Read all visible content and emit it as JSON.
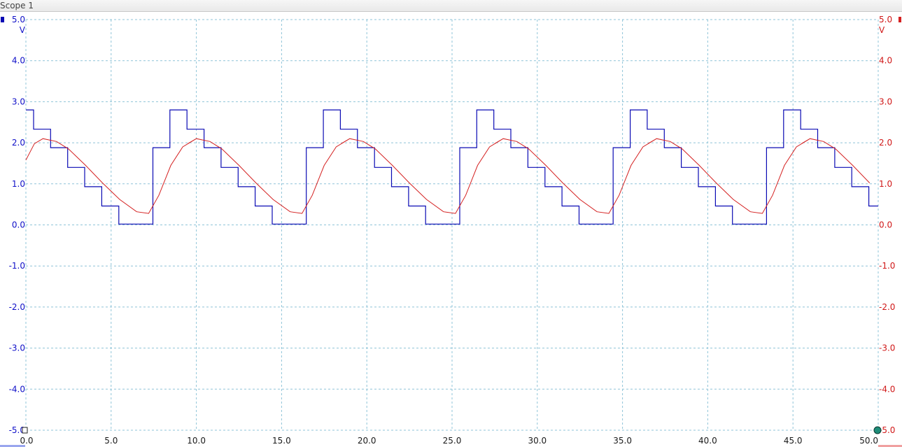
{
  "window": {
    "title": "Scope 1"
  },
  "colors": {
    "ch1": "#0a0ab4",
    "ch2": "#d42020",
    "grid": "#8fc4d8",
    "marker": "#1e8c78"
  },
  "chart_data": {
    "type": "line",
    "x": {
      "min": 0.0,
      "max": 50.0,
      "ticks": [
        "0.0",
        "5.0",
        "10.0",
        "15.0",
        "20.0",
        "25.0",
        "30.0",
        "35.0",
        "40.0",
        "45.0",
        "50.0"
      ]
    },
    "y_left": {
      "unit": "V",
      "min": -5.0,
      "max": 5.0,
      "ticks": [
        "5.0",
        "4.0",
        "3.0",
        "2.0",
        "1.0",
        "0.0",
        "-1.0",
        "-2.0",
        "-3.0",
        "-4.0",
        "-5.0"
      ]
    },
    "y_right": {
      "unit": "V",
      "min": -5.0,
      "max": 5.0,
      "ticks": [
        "5.0",
        "4.0",
        "3.0",
        "2.0",
        "1.0",
        "0.0",
        "-1.0",
        "-2.0",
        "-3.0",
        "-4.0",
        "-5.0"
      ]
    },
    "grid": true,
    "series": [
      {
        "channel": "left",
        "color": "#0a0ab4",
        "period": 9.0,
        "steps": [
          {
            "start": 0.0,
            "value": 2.8
          },
          {
            "start": 0.45,
            "value": 2.33
          },
          {
            "start": 1.45,
            "value": 1.88
          },
          {
            "start": 2.45,
            "value": 1.4
          },
          {
            "start": 3.45,
            "value": 0.93
          },
          {
            "start": 4.45,
            "value": 0.46
          },
          {
            "start": 5.45,
            "value": 0.02
          },
          {
            "start": 7.45,
            "value": 1.88
          },
          {
            "start": 8.45,
            "value": 2.8
          }
        ],
        "end_x": 50.0
      },
      {
        "channel": "right",
        "color": "#d42020",
        "period": 9.0,
        "points": [
          [
            0.0,
            1.58
          ],
          [
            0.5,
            1.98
          ],
          [
            1.0,
            2.1
          ],
          [
            1.8,
            2.03
          ],
          [
            2.5,
            1.85
          ],
          [
            3.5,
            1.45
          ],
          [
            4.5,
            1.02
          ],
          [
            5.5,
            0.62
          ],
          [
            6.5,
            0.32
          ],
          [
            7.2,
            0.28
          ],
          [
            7.8,
            0.72
          ],
          [
            8.5,
            1.45
          ],
          [
            9.2,
            1.9
          ],
          [
            10.0,
            2.1
          ]
        ],
        "end_x": 50.0
      }
    ]
  }
}
